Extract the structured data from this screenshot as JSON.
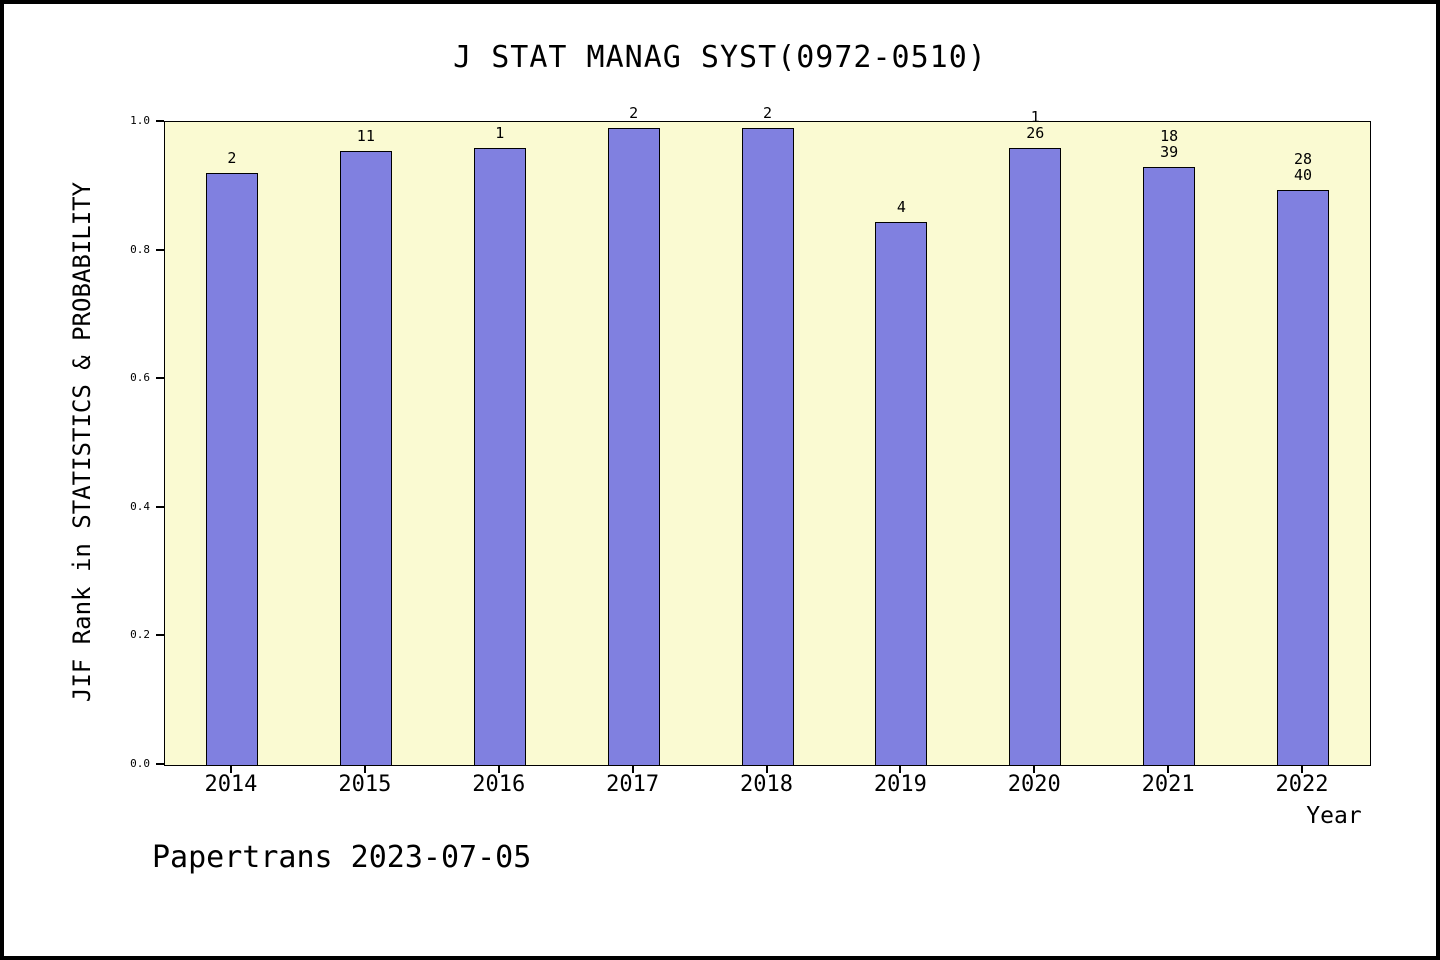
{
  "footer": "Papertrans 2023-07-05",
  "chart_data": {
    "type": "bar",
    "title": "J STAT MANAG SYST(0972-0510)",
    "xlabel": "Year",
    "ylabel": "JIF Rank in STATISTICS & PROBABILITY",
    "ylim": [
      0.0,
      1.0
    ],
    "grid": false,
    "legend_position": "none",
    "yticks": [
      {
        "label": "0.0",
        "value": 0.0
      },
      {
        "label": "0.2",
        "value": 0.2
      },
      {
        "label": "0.4",
        "value": 0.4
      },
      {
        "label": "0.6",
        "value": 0.6
      },
      {
        "label": "0.8",
        "value": 0.8
      },
      {
        "label": "1.0",
        "value": 1.0
      }
    ],
    "categories": [
      "2014",
      "2015",
      "2016",
      "2017",
      "2018",
      "2019",
      "2020",
      "2021",
      "2022"
    ],
    "values": [
      0.92,
      0.955,
      0.96,
      0.99,
      0.99,
      0.845,
      0.96,
      0.93,
      0.895
    ],
    "bar_labels": [
      [
        "2"
      ],
      [
        "11"
      ],
      [
        "1"
      ],
      [
        "2"
      ],
      [
        "2"
      ],
      [
        "4"
      ],
      [
        "1",
        "26"
      ],
      [
        "18",
        "39"
      ],
      [
        "28",
        "40"
      ]
    ],
    "colors": {
      "bar_fill": "#8080e0",
      "bar_edge": "#000000",
      "plot_background": "#fafad2",
      "page_background": "#ffffff",
      "text": "#000000"
    }
  }
}
